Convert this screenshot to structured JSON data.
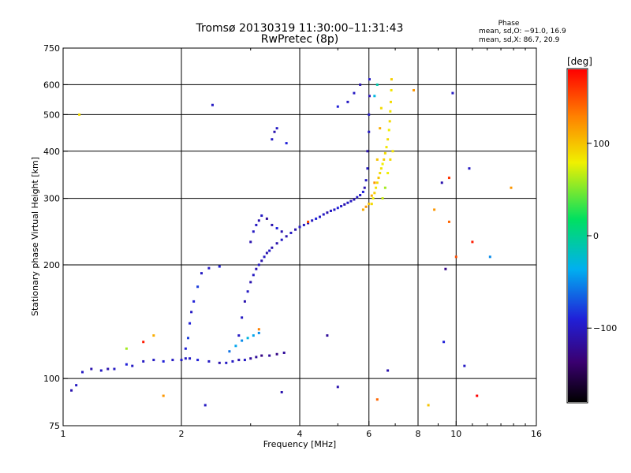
{
  "chart_data": {
    "type": "scatter",
    "title": "Tromsø 20130319 11:30:00–11:31:43",
    "subtitle": "RwPretec (8p)",
    "xlabel": "Frequency [MHz]",
    "ylabel": "Stationary phase Virtual Height [km]",
    "x_scale": "log",
    "y_scale": "log",
    "xlim": [
      1,
      16
    ],
    "ylim": [
      75,
      750
    ],
    "x_ticks": [
      1,
      2,
      4,
      6,
      8,
      10,
      16
    ],
    "y_ticks": [
      75,
      100,
      200,
      300,
      400,
      500,
      600,
      750
    ],
    "x_gridlines": [
      2,
      4,
      6,
      8,
      10
    ],
    "y_gridlines": [
      100,
      200,
      300,
      400,
      500,
      600
    ],
    "grid": true,
    "stats": {
      "heading": "Phase",
      "line_o": "mean, sd,O: −91.0, 16.9",
      "line_x": "mean, sd,X:  86.7, 20.9"
    },
    "colorbar": {
      "label": "[deg]",
      "range": [
        -180,
        180
      ],
      "ticks": [
        100,
        0,
        -100
      ],
      "colormap": "rainbow (black→purple→blue→cyan→green→yellow→red)"
    },
    "series": [
      {
        "points": [
          [
            1.05,
            93,
            -110
          ],
          [
            1.08,
            96,
            -100
          ],
          [
            1.12,
            104,
            -100
          ],
          [
            1.18,
            106,
            -110
          ],
          [
            1.25,
            105,
            -100
          ],
          [
            1.3,
            106,
            -110
          ],
          [
            1.35,
            106,
            -100
          ],
          [
            1.45,
            109,
            -90
          ],
          [
            1.5,
            108,
            -100
          ],
          [
            1.6,
            111,
            -100
          ],
          [
            1.7,
            112,
            -100
          ],
          [
            1.8,
            111,
            -90
          ],
          [
            1.9,
            112,
            -100
          ],
          [
            2.0,
            112,
            -100
          ],
          [
            2.1,
            113,
            -100
          ],
          [
            2.2,
            112,
            -90
          ],
          [
            2.35,
            111,
            -100
          ],
          [
            2.5,
            110,
            -110
          ],
          [
            2.6,
            110,
            -100
          ],
          [
            2.7,
            111,
            -100
          ],
          [
            2.8,
            112,
            -110
          ],
          [
            2.9,
            112,
            -100
          ],
          [
            3.0,
            113,
            -120
          ],
          [
            3.1,
            114,
            -120
          ],
          [
            3.2,
            115,
            -130
          ],
          [
            3.35,
            115,
            -120
          ],
          [
            3.5,
            116,
            -130
          ],
          [
            3.65,
            117,
            -120
          ],
          [
            2.05,
            113,
            -100
          ],
          [
            2.05,
            120,
            -90
          ],
          [
            2.08,
            128,
            -80
          ],
          [
            2.1,
            140,
            -90
          ],
          [
            2.12,
            150,
            -100
          ],
          [
            2.15,
            160,
            -90
          ],
          [
            2.2,
            175,
            -80
          ],
          [
            2.25,
            190,
            -100
          ],
          [
            2.35,
            196,
            -100
          ],
          [
            2.5,
            198,
            -90
          ],
          [
            2.65,
            118,
            -60
          ],
          [
            2.75,
            122,
            -40
          ],
          [
            2.85,
            126,
            -50
          ],
          [
            2.95,
            128,
            -30
          ],
          [
            3.05,
            130,
            -40
          ],
          [
            3.15,
            132,
            -50
          ],
          [
            2.8,
            130,
            -100
          ],
          [
            2.85,
            145,
            -100
          ],
          [
            2.9,
            160,
            -110
          ],
          [
            2.95,
            170,
            -100
          ],
          [
            3.0,
            180,
            -110
          ],
          [
            3.05,
            188,
            -100
          ],
          [
            3.1,
            195,
            -110
          ],
          [
            3.15,
            200,
            -100
          ],
          [
            3.2,
            205,
            -110
          ],
          [
            3.25,
            210,
            -100
          ],
          [
            3.3,
            215,
            -110
          ],
          [
            3.35,
            218,
            -100
          ],
          [
            3.4,
            222,
            -110
          ],
          [
            3.5,
            228,
            -110
          ],
          [
            3.6,
            233,
            -100
          ],
          [
            3.7,
            238,
            -110
          ],
          [
            3.8,
            243,
            -100
          ],
          [
            3.9,
            248,
            -110
          ],
          [
            4.0,
            252,
            -100
          ],
          [
            4.1,
            255,
            -100
          ],
          [
            4.2,
            258,
            -110
          ],
          [
            4.3,
            262,
            -100
          ],
          [
            4.4,
            265,
            -90
          ],
          [
            4.5,
            268,
            -100
          ],
          [
            4.6,
            272,
            -100
          ],
          [
            4.7,
            275,
            -110
          ],
          [
            4.8,
            278,
            -100
          ],
          [
            4.9,
            280,
            -100
          ],
          [
            5.0,
            283,
            -90
          ],
          [
            5.1,
            286,
            -100
          ],
          [
            5.2,
            289,
            -110
          ],
          [
            5.3,
            292,
            -100
          ],
          [
            5.4,
            295,
            -100
          ],
          [
            5.5,
            298,
            -110
          ],
          [
            5.6,
            302,
            -100
          ],
          [
            5.7,
            306,
            -100
          ],
          [
            5.8,
            312,
            -90
          ],
          [
            5.85,
            320,
            -110
          ],
          [
            5.9,
            335,
            -100
          ],
          [
            5.95,
            360,
            -100
          ],
          [
            5.95,
            400,
            -110
          ],
          [
            6.0,
            450,
            -100
          ],
          [
            6.0,
            500,
            -100
          ],
          [
            6.02,
            560,
            -110
          ],
          [
            6.02,
            620,
            -100
          ],
          [
            3.0,
            230,
            -110
          ],
          [
            3.05,
            245,
            -100
          ],
          [
            3.1,
            255,
            -100
          ],
          [
            3.15,
            262,
            -110
          ],
          [
            3.2,
            270,
            -100
          ],
          [
            3.3,
            265,
            -120
          ],
          [
            3.4,
            255,
            -110
          ],
          [
            3.5,
            250,
            -90
          ],
          [
            3.6,
            245,
            -110
          ],
          [
            3.4,
            430,
            -100
          ],
          [
            3.45,
            450,
            -110
          ],
          [
            3.5,
            460,
            -100
          ],
          [
            5.0,
            525,
            -90
          ],
          [
            5.3,
            540,
            -100
          ],
          [
            5.7,
            600,
            -110
          ],
          [
            5.5,
            570,
            -100
          ],
          [
            4.7,
            130,
            -120
          ],
          [
            5.0,
            95,
            -110
          ],
          [
            6.7,
            105,
            -110
          ],
          [
            2.3,
            85,
            -100
          ],
          [
            3.6,
            92,
            -110
          ],
          [
            9.4,
            195,
            -130
          ],
          [
            10.8,
            360,
            -100
          ],
          [
            9.2,
            330,
            -110
          ],
          [
            9.3,
            125,
            -90
          ],
          [
            2.4,
            530,
            -100
          ],
          [
            3.7,
            420,
            -90
          ],
          [
            10.5,
            108,
            -100
          ],
          [
            9.8,
            570,
            -100
          ]
        ]
      },
      {
        "points": [
          [
            6.1,
            290,
            90
          ],
          [
            6.15,
            300,
            80
          ],
          [
            6.2,
            310,
            95
          ],
          [
            6.25,
            320,
            85
          ],
          [
            6.3,
            330,
            90
          ],
          [
            6.35,
            340,
            100
          ],
          [
            6.4,
            350,
            90
          ],
          [
            6.45,
            360,
            85
          ],
          [
            6.5,
            370,
            80
          ],
          [
            6.55,
            380,
            95
          ],
          [
            6.6,
            395,
            90
          ],
          [
            6.65,
            410,
            85
          ],
          [
            6.7,
            430,
            90
          ],
          [
            6.75,
            455,
            80
          ],
          [
            6.78,
            480,
            90
          ],
          [
            6.8,
            510,
            85
          ],
          [
            6.82,
            540,
            90
          ],
          [
            6.84,
            580,
            85
          ],
          [
            6.85,
            620,
            95
          ],
          [
            5.8,
            280,
            110
          ],
          [
            5.9,
            285,
            120
          ],
          [
            6.0,
            290,
            100
          ],
          [
            6.1,
            305,
            110
          ],
          [
            6.2,
            330,
            120
          ],
          [
            6.3,
            380,
            100
          ],
          [
            6.4,
            460,
            110
          ],
          [
            6.45,
            520,
            90
          ],
          [
            6.5,
            300,
            70
          ],
          [
            6.6,
            320,
            60
          ],
          [
            6.7,
            350,
            80
          ],
          [
            6.8,
            380,
            90
          ],
          [
            6.9,
            400,
            85
          ],
          [
            6.2,
            560,
            -30
          ],
          [
            6.3,
            600,
            -10
          ],
          [
            9.6,
            340,
            160
          ],
          [
            10.0,
            210,
            150
          ],
          [
            9.6,
            260,
            140
          ],
          [
            8.8,
            280,
            120
          ],
          [
            11.0,
            230,
            170
          ],
          [
            12.2,
            210,
            -50
          ],
          [
            13.8,
            320,
            120
          ],
          [
            11.3,
            90,
            180
          ],
          [
            6.3,
            88,
            140
          ],
          [
            8.5,
            85,
            100
          ],
          [
            1.8,
            90,
            120
          ],
          [
            1.45,
            120,
            60
          ],
          [
            1.6,
            125,
            170
          ],
          [
            1.7,
            130,
            110
          ],
          [
            3.15,
            135,
            130
          ],
          [
            4.2,
            260,
            150
          ],
          [
            1.1,
            500,
            90
          ],
          [
            7.8,
            580,
            120
          ]
        ]
      }
    ]
  }
}
